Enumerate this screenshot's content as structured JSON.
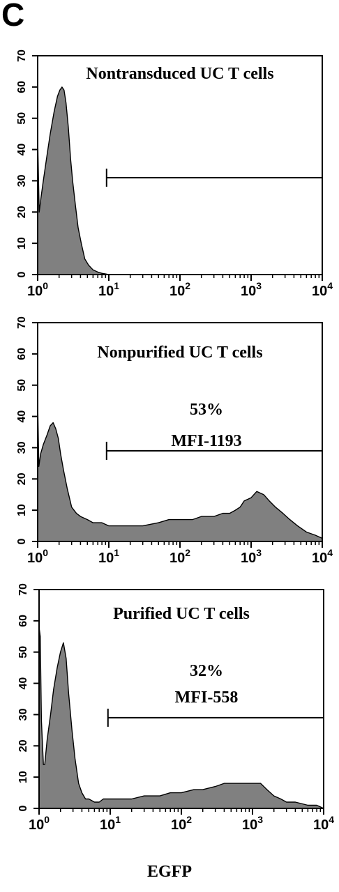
{
  "figure": {
    "panel_letter": "C",
    "xlabel": "EGFP"
  },
  "chart_data": [
    {
      "type": "area",
      "title": "Nontransduced UC T cells",
      "x_scale": "log",
      "xlim": [
        1,
        10000
      ],
      "ylim": [
        0,
        70
      ],
      "x_ticks": [
        1,
        10,
        100,
        1000,
        10000
      ],
      "x_tick_labels": [
        {
          "base": "10",
          "exp": "0"
        },
        {
          "base": "10",
          "exp": "1"
        },
        {
          "base": "10",
          "exp": "2"
        },
        {
          "base": "10",
          "exp": "3"
        },
        {
          "base": "10",
          "exp": "4"
        }
      ],
      "y_ticks": [
        0,
        10,
        20,
        30,
        40,
        50,
        60,
        70
      ],
      "y_tick_labels": [
        "0",
        "10",
        "20",
        "30",
        "40",
        "50",
        "60",
        "70"
      ],
      "series": [
        {
          "fill": "#808080",
          "x": [
            1,
            1.05,
            1.12,
            1.2,
            1.35,
            1.5,
            1.7,
            1.9,
            2.05,
            2.2,
            2.35,
            2.5,
            2.7,
            2.9,
            3.1,
            3.4,
            3.7,
            4.1,
            4.6,
            5.2,
            6,
            7,
            8,
            9,
            10
          ],
          "y": [
            44,
            20,
            25,
            30,
            38,
            45,
            52,
            57,
            59,
            60,
            59,
            55,
            47,
            37,
            30,
            22,
            15,
            10,
            5,
            3,
            1.5,
            0.8,
            0.4,
            0.2,
            0
          ]
        }
      ],
      "gate": {
        "x_start": 9.3,
        "x_end": 10000,
        "y": 31
      },
      "annotations": []
    },
    {
      "type": "area",
      "title": "Nonpurified UC T cells",
      "x_scale": "log",
      "xlim": [
        1,
        10000
      ],
      "ylim": [
        0,
        70
      ],
      "x_ticks": [
        1,
        10,
        100,
        1000,
        10000
      ],
      "x_tick_labels": [
        {
          "base": "10",
          "exp": "0"
        },
        {
          "base": "10",
          "exp": "1"
        },
        {
          "base": "10",
          "exp": "2"
        },
        {
          "base": "10",
          "exp": "3"
        },
        {
          "base": "10",
          "exp": "4"
        }
      ],
      "y_ticks": [
        0,
        10,
        20,
        30,
        40,
        50,
        60,
        70
      ],
      "y_tick_labels": [
        "0",
        "10",
        "20",
        "30",
        "40",
        "50",
        "60",
        "70"
      ],
      "series": [
        {
          "fill": "#808080",
          "x": [
            1,
            1.04,
            1.1,
            1.2,
            1.35,
            1.5,
            1.65,
            1.8,
            1.95,
            2.1,
            2.3,
            2.6,
            3,
            3.5,
            4,
            5,
            6,
            8,
            10,
            15,
            20,
            30,
            50,
            70,
            100,
            150,
            200,
            300,
            400,
            500,
            600,
            700,
            800,
            1000,
            1200,
            1500,
            1800,
            2200,
            2800,
            3500,
            4500,
            6000,
            8000,
            10000
          ],
          "y": [
            45,
            24,
            28,
            31,
            34,
            37,
            38,
            36,
            33,
            28,
            23,
            17,
            11,
            9,
            8,
            7,
            6,
            6,
            5,
            5,
            5,
            5,
            6,
            7,
            7,
            7,
            8,
            8,
            9,
            9,
            10,
            11,
            13,
            14,
            16,
            15,
            13,
            11,
            9,
            7,
            5,
            3,
            2,
            1
          ]
        }
      ],
      "gate": {
        "x_start": 9.3,
        "x_end": 10000,
        "y": 29
      },
      "annotations": [
        "53%",
        "MFI-1193"
      ]
    },
    {
      "type": "area",
      "title": "Purified UC T cells",
      "x_scale": "log",
      "xlim": [
        1,
        10000
      ],
      "ylim": [
        0,
        70
      ],
      "x_ticks": [
        1,
        10,
        100,
        1000,
        10000
      ],
      "x_tick_labels": [
        {
          "base": "10",
          "exp": "0"
        },
        {
          "base": "10",
          "exp": "1"
        },
        {
          "base": "10",
          "exp": "2"
        },
        {
          "base": "10",
          "exp": "3"
        },
        {
          "base": "10",
          "exp": "4"
        }
      ],
      "y_ticks": [
        0,
        10,
        20,
        30,
        40,
        50,
        60,
        70
      ],
      "y_tick_labels": [
        "0",
        "10",
        "20",
        "30",
        "40",
        "50",
        "60",
        "70"
      ],
      "series": [
        {
          "fill": "#808080",
          "x": [
            1,
            1.04,
            1.08,
            1.15,
            1.2,
            1.3,
            1.45,
            1.6,
            1.8,
            2,
            2.2,
            2.4,
            2.6,
            2.9,
            3.2,
            3.6,
            4,
            4.5,
            5,
            6,
            7,
            8,
            10,
            15,
            20,
            30,
            50,
            70,
            100,
            150,
            200,
            300,
            400,
            500,
            700,
            1000,
            1300,
            1600,
            2000,
            2500,
            3000,
            4000,
            6000,
            8000,
            10000
          ],
          "y": [
            58,
            55,
            28,
            14,
            14,
            22,
            30,
            38,
            45,
            50,
            53,
            48,
            37,
            25,
            16,
            8,
            5,
            3,
            3,
            2,
            2,
            3,
            3,
            3,
            3,
            4,
            4,
            5,
            5,
            6,
            6,
            7,
            8,
            8,
            8,
            8,
            8,
            6,
            4,
            3,
            2,
            2,
            1,
            1,
            0
          ]
        }
      ],
      "gate": {
        "x_start": 9.3,
        "x_end": 10000,
        "y": 29
      },
      "annotations": [
        "32%",
        "MFI-558"
      ]
    }
  ]
}
